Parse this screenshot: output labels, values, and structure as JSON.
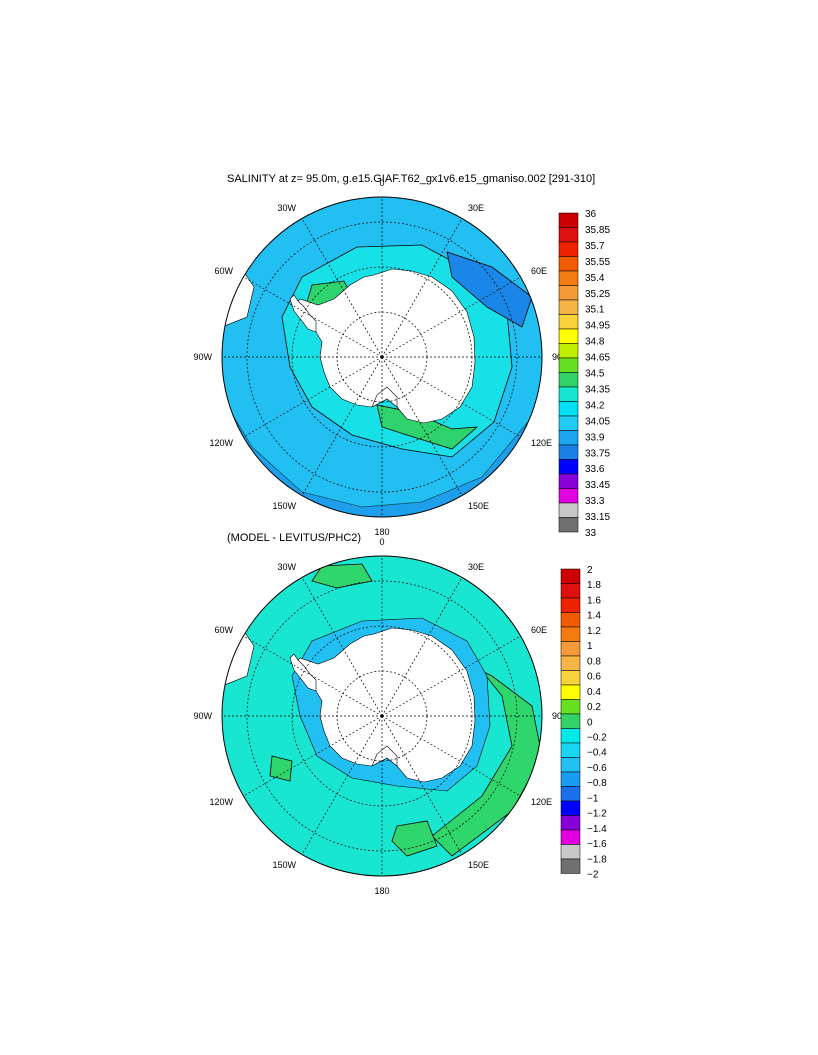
{
  "panels": [
    {
      "title": "SALINITY at z=  95.0m, g.e15.GIAF.T62_gx1v6.e15_gmaniso.002 [291-310]",
      "lon_labels": [
        "0",
        "30E",
        "60E",
        "90E",
        "120E",
        "150E",
        "180",
        "150W",
        "120W",
        "90W",
        "60W",
        "30W"
      ],
      "colorbar": {
        "ticks": [
          "36",
          "35.85",
          "35.7",
          "35.55",
          "35.4",
          "35.25",
          "35.1",
          "34.95",
          "34.8",
          "34.65",
          "34.5",
          "34.35",
          "34.2",
          "34.05",
          "33.9",
          "33.75",
          "33.6",
          "33.45",
          "33.3",
          "33.15",
          "33"
        ],
        "colors": [
          "#cc0000",
          "#dd0f0f",
          "#ee2200",
          "#f25a00",
          "#f47b0f",
          "#f49a38",
          "#f5b445",
          "#f8d23a",
          "#ffff00",
          "#bff000",
          "#66e020",
          "#33d266",
          "#19e6d2",
          "#00e0f5",
          "#22ccf4",
          "#1aa7f0",
          "#1a80e8",
          "#0000ff",
          "#8800d8",
          "#e000e0",
          "#c8c8c8",
          "#707070"
        ]
      }
    },
    {
      "title": "(MODEL - LEVITUS/PHC2)",
      "lon_labels": [
        "0",
        "30E",
        "60E",
        "90E",
        "120E",
        "150E",
        "180",
        "150W",
        "120W",
        "90W",
        "60W",
        "30W"
      ],
      "colorbar": {
        "ticks": [
          "2",
          "1.8",
          "1.6",
          "1.4",
          "1.2",
          "1",
          "0.8",
          "0.6",
          "0.4",
          "0.2",
          "0",
          "−0.2",
          "−0.4",
          "−0.6",
          "−0.8",
          "−1",
          "−1.2",
          "−1.4",
          "−1.6",
          "−1.8",
          "−2"
        ],
        "colors": [
          "#cc0000",
          "#dd0f0f",
          "#ee2200",
          "#f25a00",
          "#f47b0f",
          "#f49a38",
          "#f5b445",
          "#f8d23a",
          "#ffff00",
          "#66e020",
          "#33d266",
          "#00e8e8",
          "#19d6f0",
          "#22c0f0",
          "#1a9cf0",
          "#1a70e8",
          "#0000ff",
          "#8800d8",
          "#e000e0",
          "#c8c8c8",
          "#707070"
        ]
      }
    }
  ],
  "map_colors": {
    "salinity_background": "#22bff2",
    "salinity_shelf": "#17e0e6",
    "salinity_green": "#2fd36e",
    "salinity_low": "#1a86e8",
    "diff_background": "#19e6d0",
    "diff_positive": "#2fd66c",
    "diff_negative": "#22bff2",
    "land": "#ffffff"
  }
}
